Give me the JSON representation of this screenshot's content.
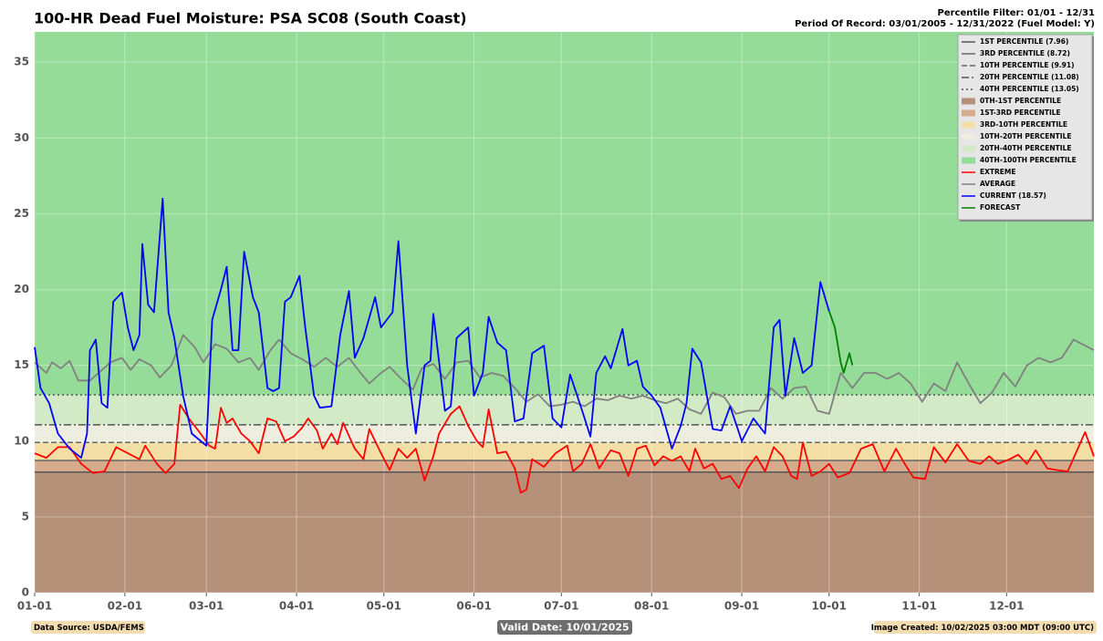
{
  "chart_data": {
    "type": "line",
    "title": "100-HR Dead Fuel Moisture: PSA SC08 (South Coast)",
    "subtitle": [
      "Percentile Filter: 01/01 - 12/31",
      "Period Of Record: 03/01/2005 - 12/31/2022 (Fuel Model: Y)"
    ],
    "footer": {
      "left": "Data Source: USDA/FEMS",
      "center": "Valid Date: 10/01/2025",
      "right": "Image Created: 10/02/2025 03:00 MDT (09:00 UTC)"
    },
    "xlim": [
      0,
      364
    ],
    "xticks": [
      {
        "value": 0,
        "label": "01-01"
      },
      {
        "value": 31,
        "label": "02-01"
      },
      {
        "value": 59,
        "label": "03-01"
      },
      {
        "value": 90,
        "label": "04-01"
      },
      {
        "value": 120,
        "label": "05-01"
      },
      {
        "value": 151,
        "label": "06-01"
      },
      {
        "value": 181,
        "label": "07-01"
      },
      {
        "value": 212,
        "label": "08-01"
      },
      {
        "value": 243,
        "label": "09-01"
      },
      {
        "value": 273,
        "label": "10-01"
      },
      {
        "value": 304,
        "label": "11-01"
      },
      {
        "value": 334,
        "label": "12-01"
      }
    ],
    "ylim": [
      0,
      37
    ],
    "yticks": [
      0,
      5,
      10,
      15,
      20,
      25,
      30,
      35
    ],
    "grid": true,
    "legend": "upper right",
    "percentile_lines": [
      {
        "name": "1ST PERCENTILE (7.96)",
        "value": 7.96,
        "color": "#555555",
        "line_style": "solid"
      },
      {
        "name": "3RD PERCENTILE (8.72)",
        "value": 8.72,
        "color": "#666666",
        "line_style": "solid"
      },
      {
        "name": "10TH PERCENTILE (9.91)",
        "value": 9.91,
        "color": "#666666",
        "line_style": "dashed"
      },
      {
        "name": "20TH PERCENTILE (11.08)",
        "value": 11.08,
        "color": "#555555",
        "line_style": "dashdot"
      },
      {
        "name": "40TH PERCENTILE (13.05)",
        "value": 13.05,
        "color": "#555555",
        "line_style": "dotted"
      }
    ],
    "bands": [
      {
        "name": "0TH-1ST PERCENTILE",
        "from": 0,
        "color": "#b5917a"
      },
      {
        "name": "1ST-3RD PERCENTILE",
        "from": 7.96,
        "color": "#d6ab8c"
      },
      {
        "name": "3RD-10TH PERCENTILE",
        "from": 8.72,
        "color": "#f3dea6"
      },
      {
        "name": "10TH-20TH PERCENTILE",
        "from": 9.91,
        "color": "#eeeee0"
      },
      {
        "name": "20TH-40TH PERCENTILE",
        "from": 11.08,
        "color": "#d3eac7"
      },
      {
        "name": "40TH-100TH PERCENTILE",
        "from": 13.05,
        "color": "#95dc98"
      }
    ],
    "series": [
      {
        "name": "EXTREME",
        "color": "#ff0000",
        "x": [
          0,
          4,
          8,
          12,
          16,
          20,
          24,
          28,
          32,
          36,
          38,
          42,
          45,
          48,
          50,
          53,
          57,
          60,
          62,
          64,
          66,
          68,
          71,
          74,
          77,
          80,
          83,
          86,
          89,
          92,
          94,
          97,
          99,
          102,
          104,
          106,
          110,
          113,
          115,
          119,
          122,
          125,
          128,
          131,
          134,
          137,
          139,
          143,
          146,
          149,
          152,
          154,
          156,
          159,
          162,
          165,
          167,
          169,
          171,
          175,
          179,
          183,
          185,
          188,
          191,
          194,
          198,
          201,
          204,
          207,
          210,
          213,
          216,
          219,
          222,
          225,
          227,
          230,
          233,
          236,
          239,
          242,
          245,
          248,
          251,
          254,
          257,
          260,
          262,
          264,
          267,
          270,
          273,
          276,
          280,
          284,
          288,
          292,
          296,
          299,
          302,
          306,
          309,
          313,
          317,
          321,
          325,
          328,
          331,
          335,
          338,
          341,
          344,
          348,
          351,
          355,
          358,
          361,
          364
        ],
        "values": [
          9.2,
          8.9,
          9.6,
          9.6,
          8.5,
          7.9,
          8,
          9.6,
          9.2,
          8.8,
          9.7,
          8.5,
          7.9,
          8.5,
          12.4,
          11.5,
          10.5,
          9.7,
          9.5,
          12.2,
          11.2,
          11.5,
          10.5,
          10,
          9.2,
          11.5,
          11.3,
          10,
          10.3,
          10.9,
          11.5,
          10.7,
          9.5,
          10.5,
          9.8,
          11.2,
          9.5,
          8.8,
          10.8,
          9.2,
          8.1,
          9.5,
          8.9,
          9.5,
          7.4,
          9,
          10.5,
          11.8,
          12.3,
          11,
          10,
          9.6,
          12.1,
          9.2,
          9.3,
          8.2,
          6.6,
          6.8,
          8.8,
          8.3,
          9.2,
          9.7,
          8,
          8.5,
          9.8,
          8.2,
          9.4,
          9.2,
          7.7,
          9.5,
          9.7,
          8.4,
          9,
          8.7,
          9,
          8,
          9.5,
          8.2,
          8.5,
          7.5,
          7.7,
          6.9,
          8.2,
          9,
          8,
          9.6,
          9,
          7.7,
          7.5,
          9.9,
          7.7,
          8,
          8.5,
          7.6,
          7.9,
          9.5,
          9.8,
          8,
          9.5,
          8.5,
          7.6,
          7.5,
          9.6,
          8.6,
          9.8,
          8.7,
          8.5,
          9,
          8.5,
          8.8,
          9.1,
          8.5,
          9.4,
          8.2,
          8.1,
          8,
          9.3,
          10.6,
          9
        ]
      },
      {
        "name": "AVERAGE",
        "color": "#808080",
        "x": [
          0,
          4,
          6,
          9,
          12,
          15,
          19,
          22,
          26,
          30,
          33,
          36,
          40,
          43,
          47,
          51,
          55,
          58,
          62,
          66,
          70,
          74,
          77,
          81,
          84,
          88,
          92,
          96,
          100,
          104,
          108,
          112,
          115,
          119,
          122,
          126,
          130,
          133,
          137,
          141,
          145,
          149,
          153,
          157,
          161,
          165,
          169,
          173,
          177,
          181,
          185,
          189,
          193,
          197,
          201,
          205,
          209,
          213,
          217,
          221,
          225,
          229,
          233,
          237,
          241,
          245,
          249,
          253,
          257,
          261,
          265,
          269,
          273,
          277,
          281,
          285,
          289,
          293,
          297,
          301,
          305,
          309,
          313,
          317,
          321,
          325,
          329,
          333,
          337,
          341,
          345,
          349,
          353,
          357,
          361,
          364
        ],
        "values": [
          15.2,
          14.5,
          15.2,
          14.8,
          15.3,
          14,
          14,
          14.5,
          15.2,
          15.5,
          14.7,
          15.4,
          15,
          14.2,
          15,
          17,
          16.2,
          15.2,
          16.4,
          16.1,
          15.2,
          15.5,
          14.7,
          16,
          16.7,
          15.8,
          15.4,
          14.9,
          15.5,
          14.9,
          15.5,
          14.5,
          13.8,
          14.5,
          14.9,
          14.1,
          13.4,
          14.8,
          15.1,
          14.1,
          15.2,
          15.3,
          14.2,
          14.5,
          14.3,
          13.5,
          12.6,
          13.1,
          12.3,
          12.4,
          12.6,
          12.3,
          12.8,
          12.7,
          13,
          12.8,
          13,
          12.7,
          12.5,
          12.8,
          12.1,
          11.8,
          13.2,
          12.9,
          11.8,
          12,
          12,
          13.5,
          12.8,
          13.5,
          13.6,
          12,
          11.8,
          14.5,
          13.5,
          14.5,
          14.5,
          14.1,
          14.5,
          13.8,
          12.6,
          13.8,
          13.3,
          15.2,
          13.8,
          12.5,
          13.2,
          14.5,
          13.6,
          15,
          15.5,
          15.2,
          15.5,
          16.7,
          16.3,
          16
        ]
      },
      {
        "name": "CURRENT (18.57)",
        "color": "#0000ff",
        "x": [
          0,
          2,
          5,
          8,
          12,
          16,
          18,
          19,
          21,
          23,
          25,
          27,
          30,
          32,
          34,
          36,
          37,
          39,
          41,
          44,
          46,
          48,
          51,
          54,
          59,
          61,
          64,
          66,
          68,
          70,
          72,
          75,
          77,
          80,
          82,
          84,
          86,
          88,
          91,
          93,
          96,
          98,
          102,
          105,
          108,
          110,
          113,
          117,
          119,
          123,
          125,
          128,
          131,
          134,
          136,
          137,
          141,
          143,
          145,
          149,
          151,
          154,
          156,
          159,
          162,
          165,
          168,
          171,
          175,
          178,
          181,
          184,
          188,
          191,
          193,
          196,
          198,
          202,
          204,
          207,
          209,
          212,
          215,
          219,
          222,
          224,
          226,
          229,
          233,
          236,
          239,
          243,
          247,
          251,
          254,
          256,
          258,
          261,
          264,
          267,
          270,
          273
        ],
        "values": [
          16.2,
          13.5,
          12.5,
          10.5,
          9.5,
          8.9,
          10.5,
          16,
          16.7,
          12.5,
          12.2,
          19.2,
          19.8,
          17.5,
          16,
          17,
          23,
          19,
          18.5,
          26,
          18.5,
          16.8,
          13,
          10.5,
          9.7,
          18,
          20,
          21.5,
          16,
          16,
          22.5,
          19.5,
          18.5,
          13.5,
          13.3,
          13.5,
          19.2,
          19.5,
          20.9,
          17.5,
          13,
          12.2,
          12.3,
          17,
          19.9,
          15.5,
          16.8,
          19.5,
          17.5,
          18.5,
          23.2,
          15,
          10.5,
          15,
          15.3,
          18.4,
          12,
          12.3,
          16.8,
          17.5,
          13,
          14.5,
          18.2,
          16.5,
          16,
          11.3,
          11.5,
          15.8,
          16.3,
          11.5,
          10.9,
          14.4,
          12.1,
          10.3,
          14.5,
          15.6,
          14.8,
          17.4,
          15,
          15.3,
          13.6,
          13,
          12.2,
          9.5,
          11,
          12.5,
          16.1,
          15.2,
          10.8,
          10.7,
          12.3,
          10,
          11.5,
          10.5,
          17.5,
          18,
          13,
          16.8,
          14.5,
          15,
          20.5,
          18.57
        ]
      },
      {
        "name": "FORECAST",
        "color": "#008000",
        "x": [
          273,
          275,
          277,
          278,
          280,
          281
        ],
        "values": [
          18.57,
          17.5,
          15.2,
          14.5,
          15.8,
          15
        ]
      }
    ]
  }
}
